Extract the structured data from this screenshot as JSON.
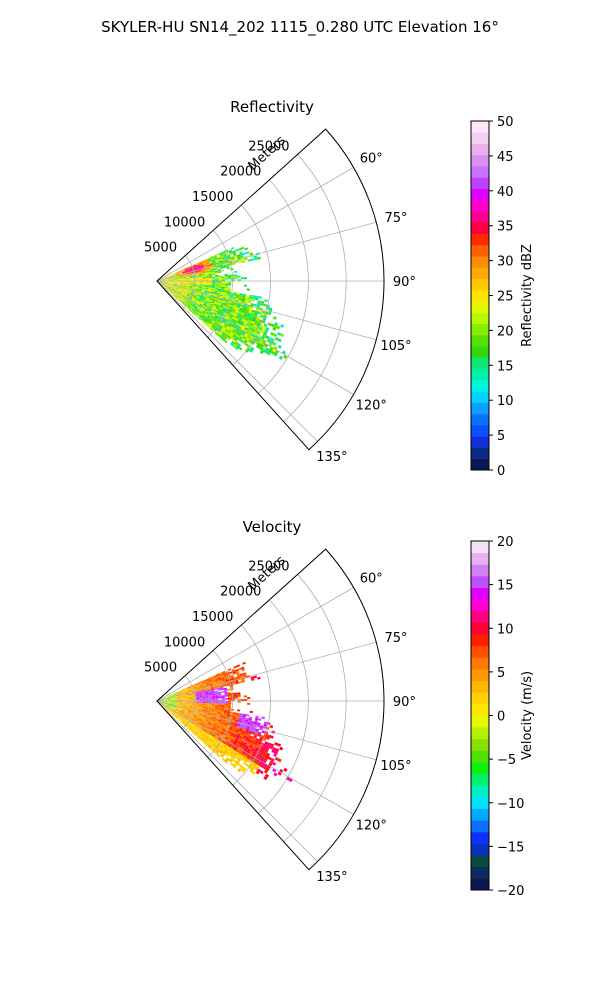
{
  "figure": {
    "title": "SKYLER-HU  SN14_202  1115_0.280 UTC Elevation 16°"
  },
  "chart_data": [
    {
      "type": "heatmap",
      "subtype": "polar-sector",
      "title": "Reflectivity",
      "radial_axis_label": "Meters",
      "radial_ticks": [
        5000,
        10000,
        15000,
        20000,
        25000
      ],
      "radial_tick_labels": [
        "5000",
        "10000",
        "15000",
        "20000",
        "25000"
      ],
      "radial_range": [
        0,
        30000
      ],
      "angle_range_deg": [
        48,
        138
      ],
      "angle_ticks_deg": [
        60,
        75,
        90,
        105,
        120,
        135
      ],
      "angle_tick_labels": [
        "60°",
        "75°",
        "90°",
        "105°",
        "120°",
        "135°"
      ],
      "grid": true,
      "colorbar": {
        "label": "Reflectivity dBZ",
        "range": [
          0,
          50
        ],
        "ticks": [
          0,
          5,
          10,
          15,
          20,
          25,
          30,
          35,
          40,
          45,
          50
        ],
        "tick_labels": [
          "0",
          "5",
          "10",
          "15",
          "20",
          "25",
          "30",
          "35",
          "40",
          "45",
          "50"
        ],
        "colors": [
          "#0b1750",
          "#0a2b86",
          "#1030d8",
          "#0a50ff",
          "#0a72ff",
          "#0aa0ff",
          "#00d4ff",
          "#00f4e0",
          "#00f0a8",
          "#10e870",
          "#30d810",
          "#58e000",
          "#88ee00",
          "#b8f800",
          "#e6f800",
          "#ffe400",
          "#ffc800",
          "#ffaa00",
          "#ff8c00",
          "#ff6000",
          "#ff2a00",
          "#ff0040",
          "#ff0088",
          "#ff00cc",
          "#e000ff",
          "#c040ff",
          "#c870ff",
          "#d890f0",
          "#e8b0f0",
          "#f4d0f4",
          "#fbe8fb"
        ]
      },
      "data_extent": {
        "min_range_m": 0,
        "max_range_m": 21000,
        "max_value_dbz": 38,
        "dominant_range_dbz": [
          15,
          25
        ],
        "echo_angles_deg": [
          66,
          132
        ]
      }
    },
    {
      "type": "heatmap",
      "subtype": "polar-sector",
      "title": "Velocity",
      "radial_axis_label": "Meters",
      "radial_ticks": [
        5000,
        10000,
        15000,
        20000,
        25000
      ],
      "radial_tick_labels": [
        "5000",
        "10000",
        "15000",
        "20000",
        "25000"
      ],
      "radial_range": [
        0,
        30000
      ],
      "angle_range_deg": [
        48,
        138
      ],
      "angle_ticks_deg": [
        60,
        75,
        90,
        105,
        120,
        135
      ],
      "angle_tick_labels": [
        "60°",
        "75°",
        "90°",
        "105°",
        "120°",
        "135°"
      ],
      "grid": true,
      "colorbar": {
        "label": "Velocity (m/s)",
        "range": [
          -20,
          20
        ],
        "ticks": [
          -20,
          -15,
          -10,
          -5,
          0,
          5,
          10,
          15,
          20
        ],
        "tick_labels": [
          "−20",
          "−15",
          "−10",
          "−5",
          "0",
          "5",
          "10",
          "15",
          "20"
        ],
        "colors": [
          "#0b1750",
          "#0a2b60",
          "#0a4a40",
          "#0a30c0",
          "#1030ff",
          "#0a70ff",
          "#00a8ff",
          "#00e0ff",
          "#00f0c0",
          "#00f070",
          "#10f010",
          "#50e000",
          "#88e000",
          "#b8f000",
          "#e8f800",
          "#ffe800",
          "#ffd200",
          "#ffb800",
          "#ff9800",
          "#ff7800",
          "#ff5000",
          "#ff2000",
          "#ff0030",
          "#ff0080",
          "#ff00d0",
          "#e000ff",
          "#c050ff",
          "#d080f0",
          "#e8b0f0",
          "#f8e0f8"
        ]
      },
      "data_extent": {
        "min_range_m": 0,
        "max_range_m": 21000,
        "value_range_ms": [
          -6,
          14
        ],
        "echo_angles_deg": [
          66,
          132
        ]
      }
    }
  ]
}
